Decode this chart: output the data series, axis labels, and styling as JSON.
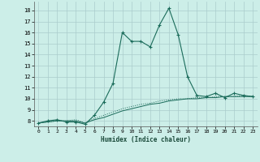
{
  "xlabel": "Humidex (Indice chaleur)",
  "xlim": [
    -0.5,
    23.5
  ],
  "ylim": [
    7.5,
    18.8
  ],
  "yticks": [
    8,
    9,
    10,
    11,
    12,
    13,
    14,
    15,
    16,
    17,
    18
  ],
  "xticks": [
    0,
    1,
    2,
    3,
    4,
    5,
    6,
    7,
    8,
    9,
    10,
    11,
    12,
    13,
    14,
    15,
    16,
    17,
    18,
    19,
    20,
    21,
    22,
    23
  ],
  "background_color": "#cceee8",
  "grid_color": "#aacccc",
  "line_color": "#1a6b5a",
  "curve1_x": [
    0,
    1,
    2,
    3,
    4,
    5,
    6,
    7,
    8,
    9,
    10,
    11,
    12,
    13,
    14,
    15,
    16,
    17,
    18,
    19,
    20,
    21,
    22,
    23
  ],
  "curve1_y": [
    7.8,
    8.0,
    8.1,
    7.9,
    7.9,
    7.7,
    8.5,
    9.7,
    11.4,
    16.0,
    15.2,
    15.2,
    14.7,
    16.7,
    18.2,
    15.8,
    12.0,
    10.3,
    10.2,
    10.5,
    10.1,
    10.5,
    10.3,
    10.2
  ],
  "curve2_x": [
    0,
    1,
    2,
    3,
    4,
    5,
    6,
    7,
    8,
    9,
    10,
    11,
    12,
    13,
    14,
    15,
    16,
    17,
    18,
    19,
    20,
    21,
    22,
    23
  ],
  "curve2_y": [
    7.8,
    7.9,
    8.0,
    8.0,
    8.0,
    7.8,
    8.1,
    8.3,
    8.6,
    8.9,
    9.1,
    9.3,
    9.5,
    9.6,
    9.8,
    9.9,
    10.0,
    10.0,
    10.1,
    10.1,
    10.2,
    10.2,
    10.2,
    10.2
  ],
  "curve3_x": [
    0,
    1,
    2,
    3,
    4,
    5,
    6,
    7,
    8,
    9,
    10,
    11,
    12,
    13,
    14,
    15,
    16,
    17,
    18,
    19,
    20,
    21,
    22,
    23
  ],
  "curve3_y": [
    7.8,
    7.9,
    8.0,
    8.0,
    8.1,
    7.8,
    8.2,
    8.5,
    8.8,
    9.1,
    9.3,
    9.5,
    9.6,
    9.8,
    9.9,
    10.0,
    10.0,
    10.1,
    10.1,
    10.2,
    10.2,
    10.2,
    10.3,
    10.2
  ]
}
